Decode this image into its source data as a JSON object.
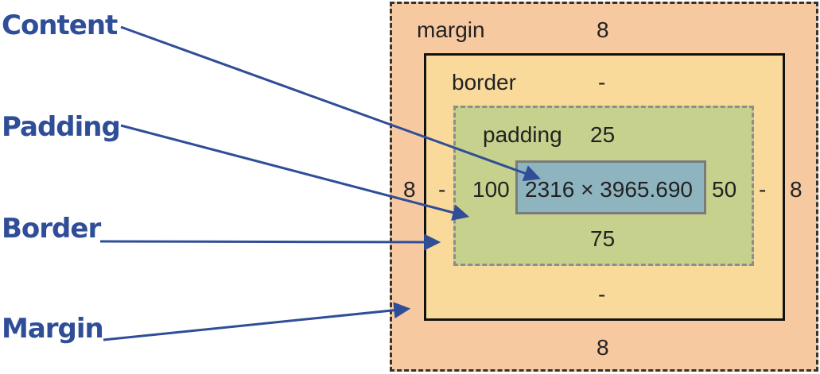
{
  "callouts": {
    "content": "Content",
    "padding": "Padding",
    "border": "Border",
    "margin": "Margin"
  },
  "box_model": {
    "margin": {
      "label": "margin",
      "top": "8",
      "right": "8",
      "bottom": "8",
      "left": "8"
    },
    "border": {
      "label": "border",
      "top": "-",
      "right": "-",
      "bottom": "-",
      "left": "-"
    },
    "padding": {
      "label": "padding",
      "top": "25",
      "right": "50",
      "bottom": "75",
      "left": "100"
    },
    "content": {
      "size": "2316 × 3965.690"
    }
  },
  "colors": {
    "margin": "#f6c9a0",
    "border": "#f9da9b",
    "padding": "#c5d18c",
    "content": "#8eb4bf",
    "arrow": "#2f4e97"
  }
}
